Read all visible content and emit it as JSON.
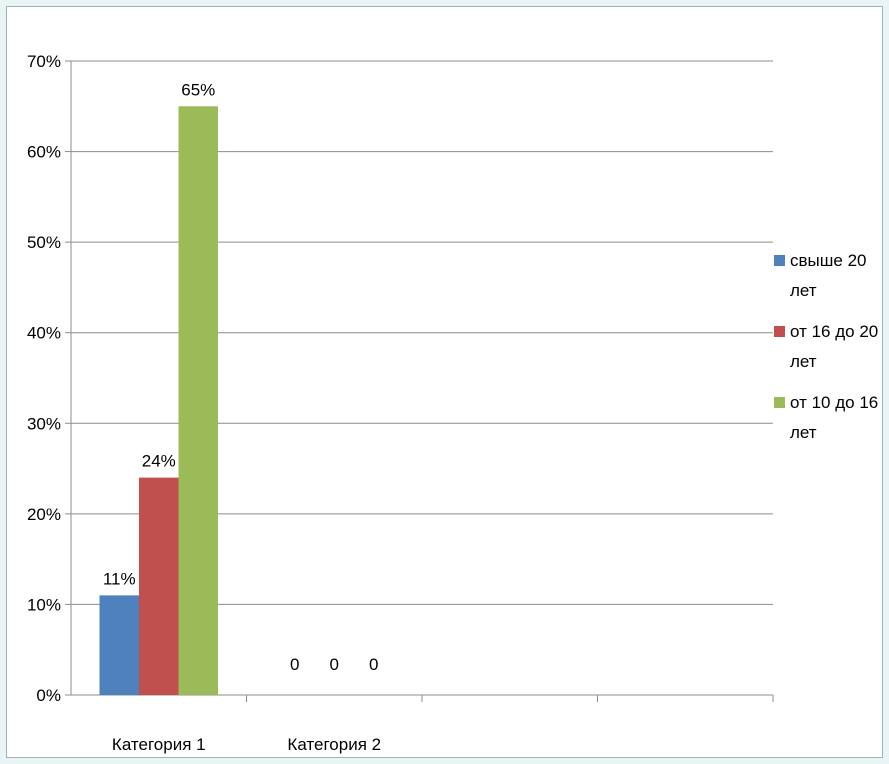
{
  "chart_data": {
    "type": "bar",
    "categories": [
      "Категория 1",
      "Категория 2"
    ],
    "series": [
      {
        "name": "свыше 20 лет",
        "color": "#4f81bd",
        "values": [
          0.11,
          0
        ],
        "labels": [
          "11%",
          "0"
        ]
      },
      {
        "name": "от 16 до 20 лет",
        "color": "#c0504d",
        "values": [
          0.24,
          0
        ],
        "labels": [
          "24%",
          "0"
        ]
      },
      {
        "name": "от 10 до 16 лет",
        "color": "#9bbb59",
        "values": [
          0.65,
          0
        ],
        "labels": [
          "65%",
          "0"
        ]
      }
    ],
    "y_ticks": [
      "0%",
      "10%",
      "20%",
      "30%",
      "40%",
      "50%",
      "60%",
      "70%"
    ],
    "ylim": [
      0,
      0.7
    ],
    "category_slots": 4,
    "grid": true,
    "legend_position": "right",
    "title": "",
    "xlabel": "",
    "ylabel": ""
  }
}
